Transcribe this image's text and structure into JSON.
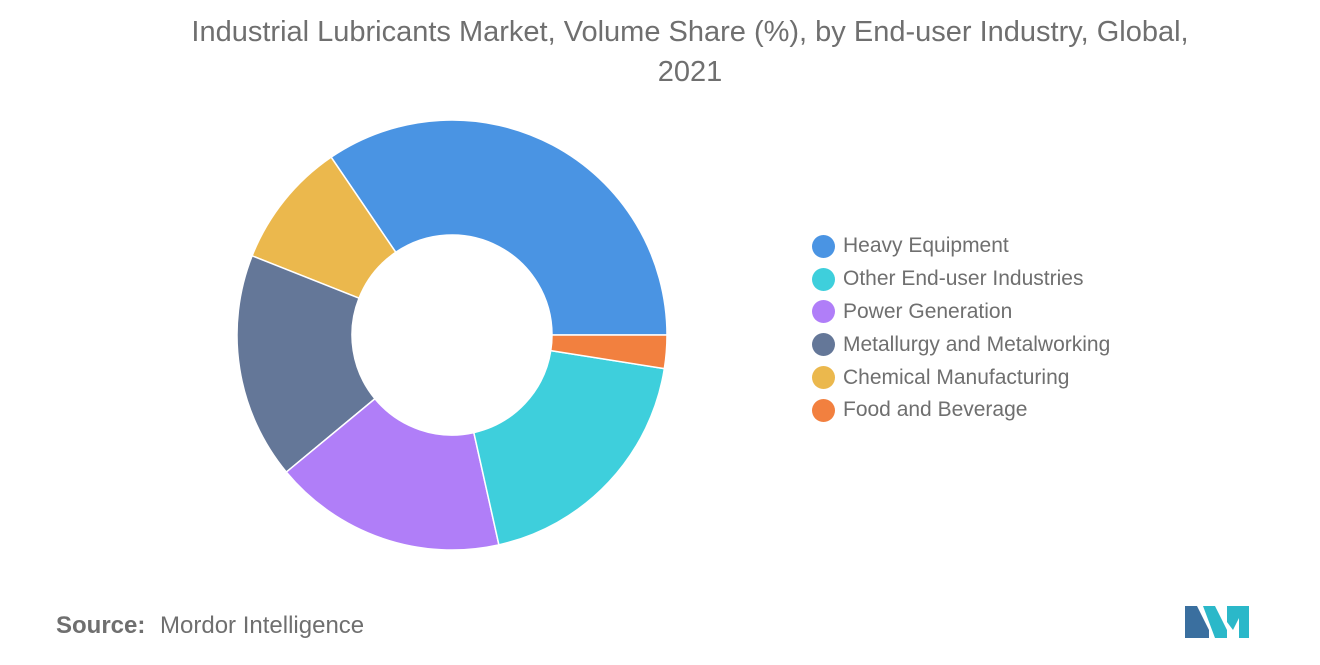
{
  "chart_data": {
    "type": "pie",
    "title_lines": [
      "Industrial Lubricants Market, Volume Share (%), by End-user Industry, Global,",
      "2021"
    ],
    "donut": true,
    "legend_position": "right",
    "slices": [
      {
        "name": "Heavy Equipment",
        "value": 34.5,
        "color": "#4a94e3"
      },
      {
        "name": "Chemical Manufacturing",
        "value": 9.5,
        "color": "#ebb84d"
      },
      {
        "name": "Metallurgy and Metalworking",
        "value": 17.0,
        "color": "#647798"
      },
      {
        "name": "Power Generation",
        "value": 17.5,
        "color": "#b07ef8"
      },
      {
        "name": "Other End-user Industries",
        "value": 19.0,
        "color": "#3ecfdc"
      },
      {
        "name": "Food and Beverage",
        "value": 2.5,
        "color": "#f2803f"
      }
    ],
    "legend_order": [
      "Heavy Equipment",
      "Other End-user Industries",
      "Power Generation",
      "Metallurgy and Metalworking",
      "Chemical Manufacturing",
      "Food and Beverage"
    ]
  },
  "source": {
    "label": "Source:",
    "text": "Mordor Intelligence"
  },
  "logo": {
    "icon": "mordor-intelligence-logo",
    "colors": [
      "#3a6f9f",
      "#2bb8c9"
    ]
  }
}
